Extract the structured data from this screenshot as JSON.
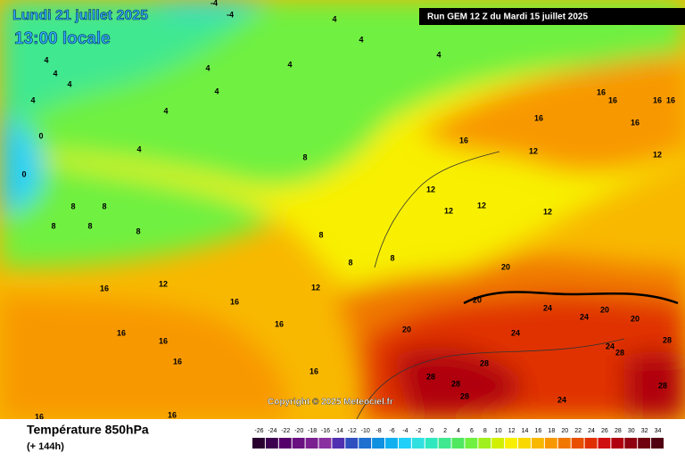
{
  "header": {
    "date": "Lundi 21 juillet 2025",
    "time": "13:00 locale",
    "run": "Run GEM 12 Z du Mardi 15 juillet 2025"
  },
  "copyright": "Copyright © 2025 Meteociel.fr",
  "legend": {
    "title": "Température 850hPa",
    "step": "(+ 144h)",
    "scale": [
      -26,
      -24,
      -22,
      -20,
      -18,
      -16,
      -14,
      -12,
      -10,
      -8,
      -6,
      -4,
      -2,
      0,
      2,
      4,
      6,
      8,
      10,
      12,
      14,
      16,
      18,
      20,
      22,
      24,
      26,
      28,
      30,
      32,
      34
    ],
    "colors": [
      "#2a0030",
      "#3d0050",
      "#55006a",
      "#6a1080",
      "#7a2090",
      "#8a30a0",
      "#5030b0",
      "#3050c0",
      "#2070d0",
      "#1090e0",
      "#10b0f0",
      "#20d0f8",
      "#30e0e0",
      "#30e8c0",
      "#40e890",
      "#50e860",
      "#70f040",
      "#a0f020",
      "#d0f000",
      "#f8f000",
      "#f8d800",
      "#f8b800",
      "#f89800",
      "#f07800",
      "#e85000",
      "#e03000",
      "#d01010",
      "#b00010",
      "#900010",
      "#700010",
      "#500010"
    ]
  },
  "contour_labels": [
    -4,
    -4,
    4,
    4,
    4,
    4,
    4,
    4,
    4,
    4,
    4,
    4,
    4,
    4,
    0,
    0,
    8,
    8,
    8,
    8,
    8,
    8,
    8,
    8,
    8,
    12,
    12,
    12,
    12,
    12,
    12,
    12,
    12,
    16,
    16,
    16,
    16,
    16,
    16,
    16,
    16,
    16,
    16,
    16,
    16,
    16,
    16,
    16,
    16,
    20,
    20,
    20,
    20,
    20,
    24,
    24,
    24,
    24,
    24,
    28,
    28,
    28,
    28,
    28,
    28,
    28
  ]
}
